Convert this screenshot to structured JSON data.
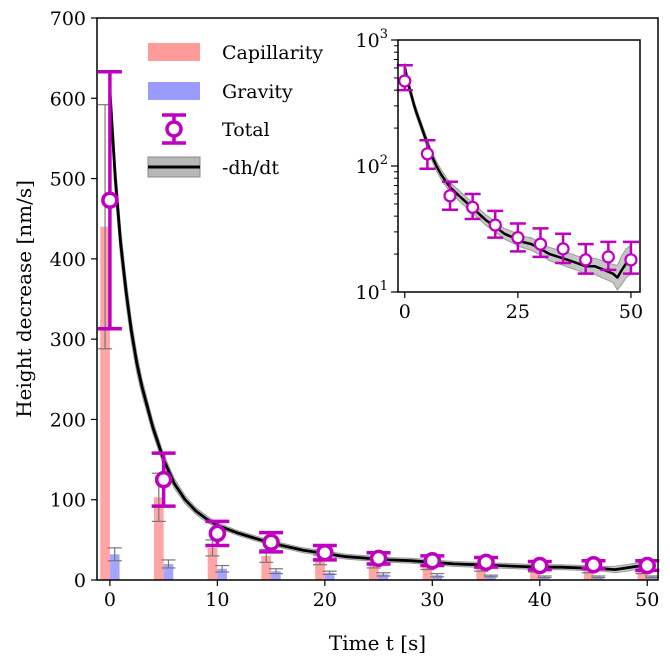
{
  "chart_data": [
    {
      "type": "bar",
      "xlabel": "Time t [s]",
      "ylabel": "Height decrease [nm/s]",
      "xlim": [
        -1.2,
        51
      ],
      "ylim": [
        0,
        700
      ],
      "xticks": [
        "0",
        "10",
        "20",
        "30",
        "40",
        "50"
      ],
      "yticks": [
        "0",
        "100",
        "200",
        "300",
        "400",
        "500",
        "600",
        "700"
      ],
      "legend_position": "upper-left",
      "x": [
        0,
        5,
        10,
        15,
        20,
        25,
        30,
        35,
        40,
        45,
        50
      ],
      "series": [
        {
          "name": "Capillarity",
          "kind": "bar",
          "color": "#ff9b9b",
          "values": [
            440,
            103,
            40,
            30,
            25,
            20,
            17,
            15,
            13,
            12,
            11
          ],
          "errors": [
            152,
            30,
            10,
            8,
            6,
            5,
            4,
            4,
            3,
            3,
            3
          ]
        },
        {
          "name": "Gravity",
          "kind": "bar",
          "color": "#9b9bff",
          "values": [
            32,
            20,
            14,
            11,
            9,
            7,
            6,
            5,
            4,
            4,
            4
          ],
          "errors": [
            8,
            5,
            4,
            3,
            2,
            2,
            2,
            1,
            1,
            1,
            1
          ]
        },
        {
          "name": "Total",
          "kind": "errorbar",
          "color": "#c000c0",
          "values": [
            473,
            125,
            58,
            47,
            34,
            27,
            24,
            22,
            18,
            19,
            18
          ],
          "errors": [
            160,
            33,
            15,
            12,
            9,
            7,
            6,
            6,
            5,
            5,
            6
          ]
        },
        {
          "name": "-dh/dt",
          "kind": "line",
          "color": "#000000",
          "band_color": "#b8b8b8",
          "x": [
            0,
            0.5,
            1,
            1.5,
            2,
            2.5,
            3,
            4,
            5,
            6,
            7,
            8,
            9,
            10,
            12,
            14,
            16,
            18,
            20,
            22,
            24,
            26,
            28,
            30,
            32,
            34,
            36,
            38,
            40,
            42,
            44,
            46,
            47,
            48,
            49,
            50
          ],
          "values": [
            610,
            500,
            420,
            360,
            310,
            270,
            240,
            190,
            150,
            120,
            100,
            86,
            76,
            68,
            58,
            50,
            43,
            37,
            33,
            29,
            27,
            25,
            24,
            22,
            20,
            19,
            18,
            17,
            16,
            16,
            15,
            14,
            13,
            15,
            17,
            18
          ],
          "band": [
            15,
            20,
            18,
            16,
            14,
            12,
            10,
            8,
            7,
            6,
            5,
            4,
            4,
            3,
            3,
            3,
            3,
            3,
            3,
            3,
            3,
            3,
            3,
            3,
            3,
            3,
            3,
            3,
            3,
            3,
            3,
            3,
            4,
            4,
            4,
            4
          ]
        }
      ]
    },
    {
      "type": "scatter",
      "yscale": "log",
      "xlim": [
        -1.5,
        52
      ],
      "ylim": [
        10,
        1000
      ],
      "xticks": [
        "0",
        "25",
        "50"
      ],
      "yticks": [
        "10^1",
        "10^2",
        "10^3"
      ],
      "x": [
        0,
        5,
        10,
        15,
        20,
        25,
        30,
        35,
        40,
        45,
        50
      ],
      "series": [
        {
          "name": "Total",
          "kind": "errorbar",
          "values": [
            473,
            125,
            58,
            47,
            34,
            27,
            24,
            22,
            18,
            19,
            18
          ],
          "lower": [
            400,
            95,
            45,
            38,
            27,
            21,
            19,
            17,
            14,
            15,
            14
          ],
          "upper": [
            630,
            160,
            75,
            60,
            44,
            35,
            32,
            29,
            24,
            25,
            25
          ]
        },
        {
          "name": "-dh/dt",
          "kind": "line",
          "x": [
            0,
            0.5,
            1,
            1.5,
            2,
            2.5,
            3,
            4,
            5,
            6,
            7,
            8,
            9,
            10,
            12,
            14,
            16,
            18,
            20,
            22,
            24,
            26,
            28,
            30,
            32,
            34,
            36,
            38,
            40,
            42,
            44,
            46,
            47,
            48,
            49,
            50
          ],
          "values": [
            610,
            500,
            420,
            360,
            310,
            270,
            240,
            190,
            150,
            120,
            100,
            86,
            76,
            68,
            58,
            50,
            43,
            37,
            33,
            29,
            27,
            25,
            24,
            22,
            20,
            19,
            18,
            17,
            16,
            16,
            15,
            14,
            13,
            15,
            17,
            18
          ],
          "band_factor": [
            1.08,
            1.08,
            1.08,
            1.08,
            1.08,
            1.08,
            1.08,
            1.08,
            1.09,
            1.09,
            1.09,
            1.09,
            1.09,
            1.09,
            1.1,
            1.1,
            1.1,
            1.1,
            1.1,
            1.1,
            1.11,
            1.11,
            1.12,
            1.12,
            1.13,
            1.13,
            1.14,
            1.14,
            1.15,
            1.16,
            1.17,
            1.18,
            1.25,
            1.3,
            1.3,
            1.3
          ]
        }
      ]
    }
  ]
}
